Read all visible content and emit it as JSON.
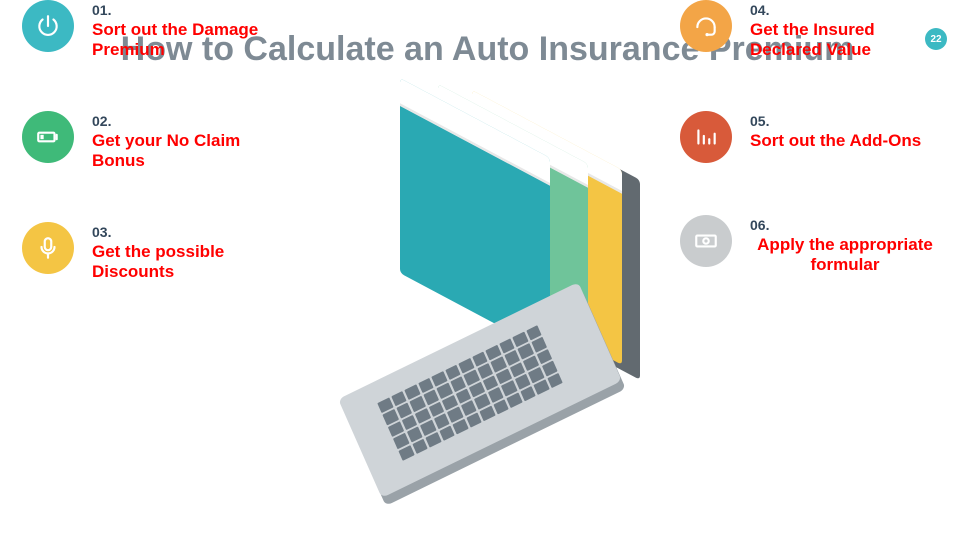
{
  "title": "How to Calculate an Auto Insurance Premium",
  "badge": "22",
  "left": [
    {
      "num": "01.",
      "label": "Sort out the Damage Premium",
      "color": "#3cb9c3"
    },
    {
      "num": "02.",
      "label": "Get your No Claim Bonus",
      "color": "#3fba79"
    },
    {
      "num": "03.",
      "label": "Get the possible Discounts",
      "color": "#f4c544"
    }
  ],
  "right": [
    {
      "num": "04.",
      "label": "Get the Insured Declared Value",
      "color": "#f3a547"
    },
    {
      "num": "05.",
      "label": "Sort out the Add-Ons",
      "color": "#d85a3a"
    },
    {
      "num": "06.",
      "label": "Apply the appropriate formular",
      "color": "#c9ccce",
      "center": true
    }
  ],
  "colors": {
    "title": "#7e8a94",
    "step_text": "#ff0000",
    "num_text": "#33475b",
    "badge_bg": "#3cb9c3",
    "bg": "#ffffff",
    "laptop_base": "#cfd4d8",
    "laptop_shadow": "#9aa2a8",
    "laptop_keys": "#6f7b85",
    "screen_back": "#626a70",
    "panel_front": "#2aa9b3",
    "panel_mid": "#6fc49a",
    "panel_back": "#f4c544"
  },
  "type": "infographic",
  "title_fontsize": 34,
  "num_fontsize": 14,
  "label_fontsize": 17,
  "icon_circle_diameter": 52
}
